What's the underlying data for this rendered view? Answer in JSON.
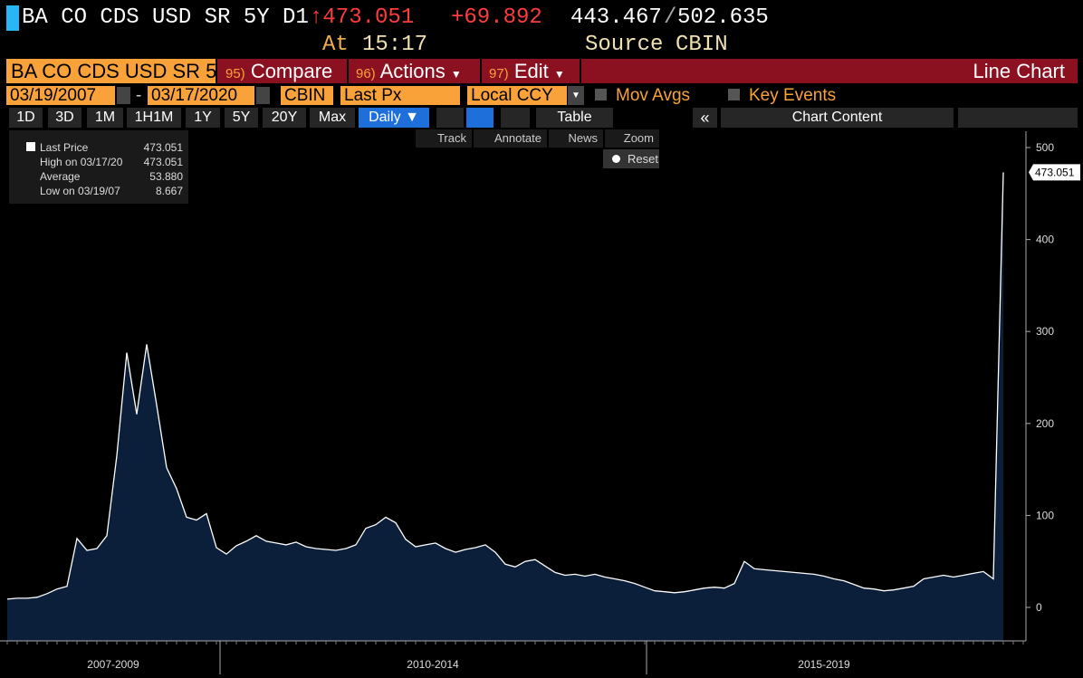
{
  "header": {
    "ticker": "BA CO CDS USD SR 5Y D1",
    "last": "↑473.051",
    "change": "+69.892",
    "low": "443.467",
    "sep": "/",
    "high": "502.635",
    "at_label": "At",
    "time": "15:17",
    "source_label": "Source",
    "source": "CBIN"
  },
  "menu": {
    "security": "BA CO CDS USD SR 5",
    "compare_num": "95)",
    "compare": "Compare",
    "actions_num": "96)",
    "actions": "Actions",
    "edit_num": "97)",
    "edit": "Edit",
    "view": "Line Chart"
  },
  "fields": {
    "start": "03/19/2007",
    "dash": "-",
    "end": "03/17/2020",
    "source": "CBIN",
    "field": "Last Px",
    "currency": "Local CCY",
    "mov_avgs": "Mov Avgs",
    "key_events": "Key Events"
  },
  "toolbar": {
    "ranges": [
      "1D",
      "3D",
      "1M",
      "1H1M",
      "1Y",
      "5Y",
      "20Y",
      "Max"
    ],
    "period": "Daily ▼",
    "table": "Table",
    "collapse": "«",
    "content": "Chart Content"
  },
  "tools": [
    "Track",
    "Annotate",
    "News",
    "Zoom"
  ],
  "reset": "Reset",
  "legend": [
    {
      "label": "Last Price",
      "value": "473.051"
    },
    {
      "label": "High on 03/17/20",
      "value": "473.051"
    },
    {
      "label": "Average",
      "value": "53.880"
    },
    {
      "label": "Low on 03/19/07",
      "value": "8.667"
    }
  ],
  "chart_data": {
    "type": "area",
    "color": "#ffffff",
    "fill": "#0b1f3a",
    "xaxis_labels": [
      "2007-2009",
      "2010-2014",
      "2015-2019"
    ],
    "values": [
      9,
      10,
      10,
      11,
      15,
      20,
      23,
      75,
      62,
      64,
      78,
      165,
      277,
      210,
      286,
      220,
      152,
      129,
      98,
      95,
      102,
      65,
      58,
      67,
      72,
      78,
      72,
      70,
      68,
      71,
      66,
      64,
      63,
      62,
      64,
      68,
      86,
      90,
      98,
      92,
      74,
      66,
      68,
      70,
      64,
      60,
      63,
      65,
      68,
      60,
      47,
      44,
      50,
      52,
      45,
      38,
      35,
      36,
      34,
      36,
      33,
      31,
      29,
      26,
      22,
      18,
      17,
      16,
      17,
      19,
      21,
      22,
      21,
      26,
      50,
      42,
      41,
      40,
      39,
      38,
      37,
      36,
      34,
      31,
      29,
      25,
      21,
      20,
      18,
      19,
      21,
      23,
      31,
      33,
      35,
      33,
      35,
      37,
      39,
      31,
      473.051
    ],
    "ylim": [
      -36,
      518
    ],
    "yticks": [
      0,
      100,
      200,
      300,
      400,
      500
    ]
  }
}
